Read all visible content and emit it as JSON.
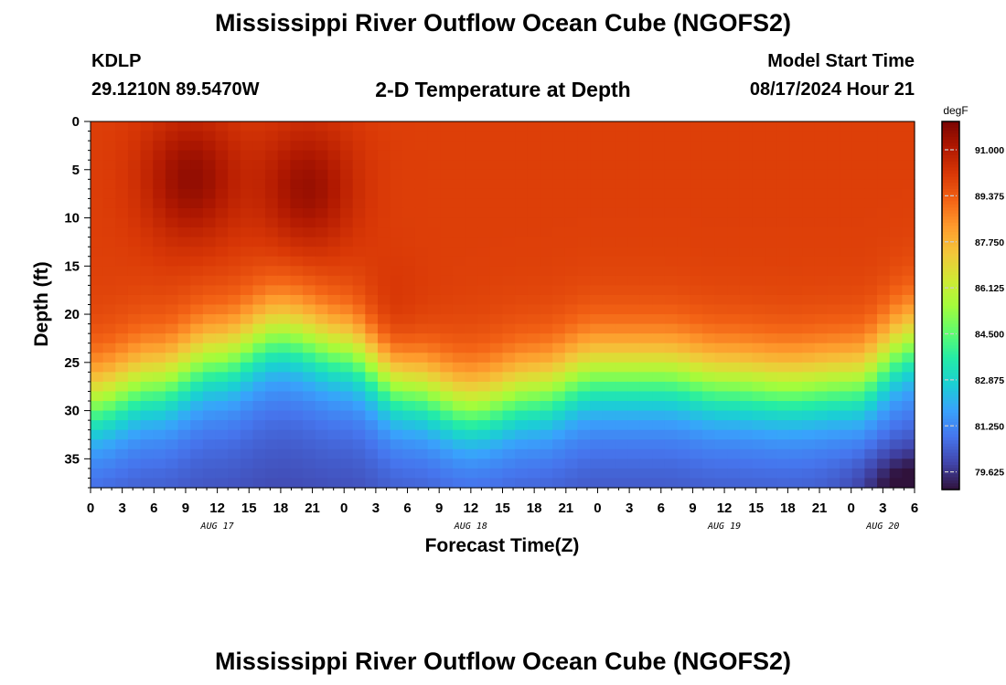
{
  "header": {
    "title": "Mississippi River Outflow Ocean Cube (NGOFS2)",
    "station_id": "KDLP",
    "coords": "29.1210N  89.5470W",
    "subtitle": "2-D Temperature at Depth",
    "model_start_label": "Model Start Time",
    "model_start_value": "08/17/2024 Hour 21"
  },
  "footer": {
    "title": "Mississippi River Outflow Ocean Cube (NGOFS2)"
  },
  "chart_data": {
    "type": "heatmap",
    "xlabel": "Forecast Time(Z)",
    "ylabel": "Depth (ft)",
    "x_range_hours": [
      0,
      78
    ],
    "x_tick_labels": [
      "0",
      "3",
      "6",
      "9",
      "12",
      "15",
      "18",
      "21",
      "0",
      "3",
      "6",
      "9",
      "12",
      "15",
      "18",
      "21",
      "0",
      "3",
      "6",
      "9",
      "12",
      "15",
      "18",
      "21",
      "0",
      "3",
      "6"
    ],
    "date_labels": [
      {
        "label": "AUG 17",
        "hour": 12
      },
      {
        "label": "AUG 18",
        "hour": 36
      },
      {
        "label": "AUG 19",
        "hour": 60
      },
      {
        "label": "AUG 20",
        "hour": 75
      }
    ],
    "y_range": [
      0,
      38
    ],
    "y_ticks": [
      0,
      5,
      10,
      15,
      20,
      25,
      30,
      35
    ],
    "y_inverted": true,
    "colorbar": {
      "unit": "degF",
      "min": 79.0,
      "max": 92.0,
      "ticks": [
        "91.000",
        "89.375",
        "87.750",
        "86.125",
        "84.500",
        "82.875",
        "81.250",
        "79.625"
      ],
      "colors": [
        "#30123b",
        "#4145ab",
        "#4675ed",
        "#39a2fc",
        "#1bcfd4",
        "#24eca6",
        "#61fc6c",
        "#a4fc3b",
        "#d1e834",
        "#f3c63a",
        "#fe9b2d",
        "#f36315",
        "#d93806",
        "#b11901",
        "#7a0402"
      ]
    },
    "temperature_model": {
      "surface_max_degF": 91.5,
      "mixed_layer_degF": 90.0,
      "bottom_degF": 81.0,
      "thermocline_depth_ft": [
        {
          "hour": 0,
          "depth": 29
        },
        {
          "hour": 6,
          "depth": 27
        },
        {
          "hour": 12,
          "depth": 24.5
        },
        {
          "hour": 18,
          "depth": 22
        },
        {
          "hour": 24,
          "depth": 23.5
        },
        {
          "hour": 30,
          "depth": 27.5
        },
        {
          "hour": 36,
          "depth": 29.5
        },
        {
          "hour": 42,
          "depth": 28
        },
        {
          "hour": 48,
          "depth": 26
        },
        {
          "hour": 54,
          "depth": 26
        },
        {
          "hour": 60,
          "depth": 27
        },
        {
          "hour": 66,
          "depth": 27.5
        },
        {
          "hour": 72,
          "depth": 27
        },
        {
          "hour": 78,
          "depth": 23
        }
      ],
      "warm_cores": [
        {
          "hour": 9.5,
          "depth": 6,
          "delta": 1.6
        },
        {
          "hour": 20.5,
          "depth": 7,
          "delta": 1.5
        },
        {
          "hour": 28,
          "depth": 22,
          "delta": 0.6
        }
      ],
      "cold_corner": {
        "hour": 78,
        "depth": 38,
        "delta": -1.6
      }
    }
  }
}
